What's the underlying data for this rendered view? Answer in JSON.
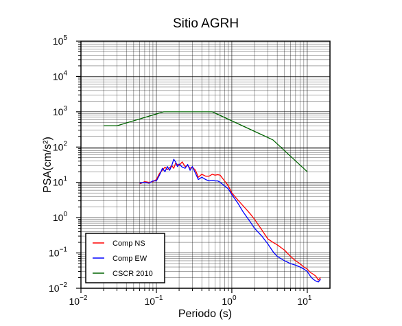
{
  "chart_data": {
    "type": "line",
    "title": "Sitio AGRH",
    "xlabel": "Periodo (s)",
    "ylabel": "PSA(cm/s²)",
    "x_scale": "log",
    "y_scale": "log",
    "xlim": [
      0.01,
      20
    ],
    "ylim": [
      0.01,
      100000
    ],
    "grid": true,
    "legend_position": "bottom-left",
    "x_ticks": [
      {
        "value": 0.01,
        "base": "10",
        "exp": "−2"
      },
      {
        "value": 0.1,
        "base": "10",
        "exp": "−1"
      },
      {
        "value": 1,
        "base": "10",
        "exp": "0"
      },
      {
        "value": 10,
        "base": "10",
        "exp": "1"
      }
    ],
    "y_ticks": [
      {
        "value": 0.01,
        "base": "10",
        "exp": "−2"
      },
      {
        "value": 0.1,
        "base": "10",
        "exp": "−1"
      },
      {
        "value": 1,
        "base": "10",
        "exp": "0"
      },
      {
        "value": 10,
        "base": "10",
        "exp": "1"
      },
      {
        "value": 100,
        "base": "10",
        "exp": "2"
      },
      {
        "value": 1000,
        "base": "10",
        "exp": "3"
      },
      {
        "value": 10000,
        "base": "10",
        "exp": "4"
      },
      {
        "value": 100000,
        "base": "10",
        "exp": "5"
      }
    ],
    "series": [
      {
        "name": "Comp NS",
        "color": "#ff0000",
        "x": [
          0.06,
          0.07,
          0.08,
          0.09,
          0.1,
          0.11,
          0.12,
          0.13,
          0.14,
          0.15,
          0.16,
          0.17,
          0.18,
          0.19,
          0.2,
          0.22,
          0.24,
          0.26,
          0.28,
          0.3,
          0.33,
          0.36,
          0.4,
          0.45,
          0.5,
          0.55,
          0.6,
          0.65,
          0.7,
          0.8,
          0.9,
          1.0,
          1.2,
          1.4,
          1.6,
          1.8,
          2.0,
          2.5,
          3.0,
          3.5,
          4.0,
          5.0,
          6.0,
          7.0,
          8.0,
          9.0,
          10.0,
          11.0,
          12.0,
          13.0,
          14.0,
          15.0
        ],
        "y": [
          9.0,
          10.5,
          10.0,
          10.5,
          12.0,
          18.0,
          22.0,
          27.0,
          23.0,
          26.0,
          30.0,
          25.0,
          35.0,
          32.0,
          30.0,
          38.0,
          28.0,
          30.0,
          25.0,
          27.0,
          22.0,
          14.0,
          17.0,
          15.0,
          15.0,
          17.0,
          16.0,
          16.5,
          16.0,
          11.0,
          8.0,
          5.0,
          3.2,
          2.2,
          1.6,
          1.2,
          0.9,
          0.45,
          0.25,
          0.2,
          0.17,
          0.12,
          0.08,
          0.06,
          0.05,
          0.04,
          0.035,
          0.028,
          0.025,
          0.022,
          0.017,
          0.02
        ]
      },
      {
        "name": "Comp EW",
        "color": "#0000ff",
        "x": [
          0.06,
          0.07,
          0.08,
          0.09,
          0.1,
          0.11,
          0.12,
          0.13,
          0.14,
          0.15,
          0.16,
          0.17,
          0.18,
          0.19,
          0.2,
          0.22,
          0.24,
          0.26,
          0.28,
          0.3,
          0.33,
          0.36,
          0.4,
          0.45,
          0.5,
          0.55,
          0.6,
          0.65,
          0.7,
          0.8,
          0.9,
          1.0,
          1.2,
          1.4,
          1.6,
          1.8,
          2.0,
          2.5,
          3.0,
          3.5,
          4.0,
          5.0,
          6.0,
          7.0,
          8.0,
          9.0,
          10.0,
          11.0,
          12.0,
          13.0,
          14.0,
          15.0
        ],
        "y": [
          9.5,
          10.0,
          9.5,
          11.0,
          11.0,
          16.0,
          25.0,
          20.0,
          28.0,
          22.0,
          30.0,
          45.0,
          38.0,
          28.0,
          33.0,
          27.0,
          25.0,
          32.0,
          22.0,
          28.0,
          18.0,
          12.0,
          14.0,
          12.0,
          11.0,
          11.5,
          11.0,
          11.0,
          10.0,
          8.0,
          6.5,
          4.5,
          2.6,
          1.5,
          1.0,
          0.7,
          0.5,
          0.3,
          0.18,
          0.11,
          0.08,
          0.06,
          0.05,
          0.045,
          0.04,
          0.035,
          0.03,
          0.022,
          0.018,
          0.016,
          0.015,
          0.018
        ]
      },
      {
        "name": "CSCR 2010",
        "color": "#006400",
        "x": [
          0.02,
          0.03,
          0.125,
          0.55,
          3.5,
          10.0
        ],
        "y": [
          400,
          400,
          1000,
          1000,
          160,
          20
        ]
      }
    ]
  }
}
